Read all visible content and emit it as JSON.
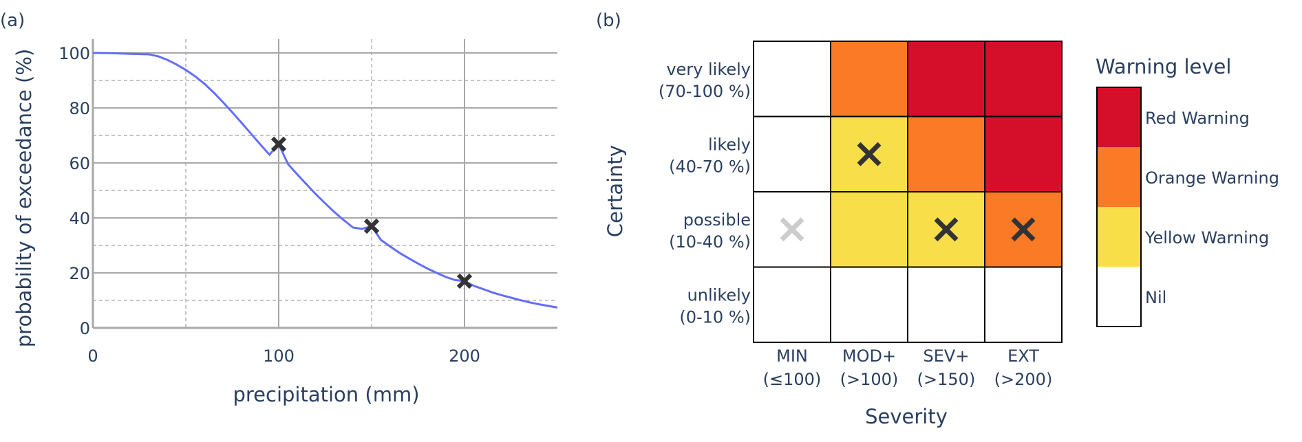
{
  "colors": {
    "line": "#636efa",
    "marker": "#333333",
    "marker_faded": "#cccccc",
    "grid_major": "#a8a8a8",
    "grid_minor": "#b4b4b4",
    "text": "#2a3f5f",
    "red": "#d50f2a",
    "orange": "#fb7a25",
    "yellow": "#f8df4a",
    "nil": "#ffffff"
  },
  "chart_data": [
    {
      "type": "line",
      "panel_label": "(a)",
      "xlabel": "precipitation (mm)",
      "ylabel": "probability of exceedance (%)",
      "xlim": [
        0,
        250
      ],
      "ylim": [
        0,
        100
      ],
      "x_ticks": [
        0,
        100,
        200
      ],
      "y_ticks": [
        0,
        20,
        40,
        60,
        80,
        100
      ],
      "x_minor_grid": [
        50,
        150
      ],
      "y_minor_grid": [
        10,
        30,
        50,
        70,
        90
      ],
      "grid": true,
      "series": [
        {
          "x": [
            0,
            10,
            20,
            30,
            35,
            40,
            45,
            50,
            55,
            60,
            65,
            70,
            75,
            80,
            85,
            90,
            95,
            100,
            105,
            110,
            115,
            120,
            125,
            130,
            135,
            140,
            145,
            150,
            155,
            160,
            165,
            170,
            175,
            180,
            185,
            190,
            195,
            200,
            205,
            210,
            215,
            220,
            225,
            230,
            235,
            240,
            245,
            250
          ],
          "y": [
            100,
            99.9,
            99.7,
            99.5,
            98.8,
            97.5,
            95.8,
            93.8,
            91.5,
            88.8,
            85.6,
            82.1,
            78.4,
            74.6,
            70.7,
            66.8,
            63.0,
            66.8,
            59.6,
            55.8,
            52.2,
            48.6,
            45.3,
            42.1,
            39.2,
            36.5,
            36.0,
            37.0,
            32.0,
            29.6,
            27.3,
            25.3,
            23.4,
            21.6,
            20.0,
            18.5,
            17.4,
            17.0,
            15.3,
            14.1,
            12.9,
            11.9,
            11.0,
            10.1,
            9.3,
            8.6,
            8.0,
            7.4
          ]
        }
      ],
      "markers": [
        {
          "x": 100,
          "y": 66.8
        },
        {
          "x": 150,
          "y": 37
        },
        {
          "x": 200,
          "y": 17
        }
      ]
    },
    {
      "type": "heatmap",
      "panel_label": "(b)",
      "xlabel": "Severity",
      "ylabel": "Certainty",
      "x_categories": [
        [
          "MIN",
          "(≤100)"
        ],
        [
          "MOD+",
          "(>100)"
        ],
        [
          "SEV+",
          "(>150)"
        ],
        [
          "EXT",
          "(>200)"
        ]
      ],
      "y_categories": [
        [
          "very likely",
          "(70-100 %)"
        ],
        [
          "likely",
          "(40-70 %)"
        ],
        [
          "possible",
          "(10-40 %)"
        ],
        [
          "unlikely",
          "(0-10 %)"
        ]
      ],
      "cells": [
        [
          "Nil",
          "Orange Warning",
          "Red Warning",
          "Red Warning"
        ],
        [
          "Nil",
          "Yellow Warning",
          "Orange Warning",
          "Red Warning"
        ],
        [
          "Nil",
          "Yellow Warning",
          "Yellow Warning",
          "Orange Warning"
        ],
        [
          "Nil",
          "Nil",
          "Nil",
          "Nil"
        ]
      ],
      "markers": [
        {
          "row": 1,
          "col": 1,
          "faded": false
        },
        {
          "row": 2,
          "col": 0,
          "faded": true
        },
        {
          "row": 2,
          "col": 2,
          "faded": false
        },
        {
          "row": 2,
          "col": 3,
          "faded": false
        }
      ],
      "legend": {
        "title": "Warning level",
        "placement": "right",
        "entries": [
          "Red Warning",
          "Orange Warning",
          "Yellow Warning",
          "Nil"
        ],
        "entry_colors": [
          "#d50f2a",
          "#fb7a25",
          "#f8df4a",
          "#ffffff"
        ]
      }
    }
  ]
}
